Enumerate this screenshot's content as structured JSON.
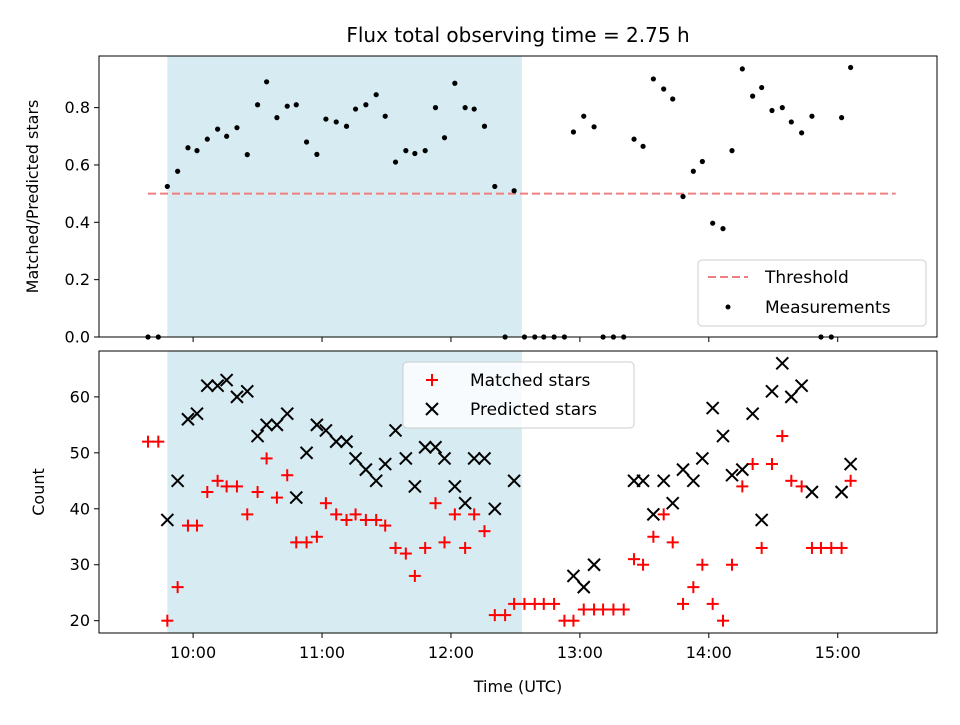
{
  "chart_data": {
    "title": "Flux total observing time = 2.75 h",
    "xlabel": "Time (UTC)",
    "x_unit": "decimal hours UTC",
    "xlim": [
      9.27,
      15.77
    ],
    "x_ticks": [
      {
        "value": 10,
        "label": "10:00"
      },
      {
        "value": 11,
        "label": "11:00"
      },
      {
        "value": 12,
        "label": "12:00"
      },
      {
        "value": 13,
        "label": "13:00"
      },
      {
        "value": 14,
        "label": "14:00"
      },
      {
        "value": 15,
        "label": "15:00"
      }
    ],
    "shaded_span": {
      "x0": 9.8,
      "x1": 12.55,
      "color": "#add8e6"
    },
    "top": {
      "type": "scatter",
      "ylabel": "Matched/Predicted stars",
      "ylim": [
        0,
        0.98
      ],
      "y_ticks": [
        "0.0",
        "0.2",
        "0.4",
        "0.6",
        "0.8"
      ],
      "y_tick_values": [
        0,
        0.2,
        0.4,
        0.6,
        0.8
      ],
      "legend_position": "lower-right",
      "threshold": {
        "name": "Threshold",
        "y": 0.5,
        "x0": 9.65,
        "x1": 15.45,
        "color": "#f08080"
      },
      "measurements": {
        "name": "Measurements",
        "color": "#000000",
        "points": [
          [
            9.65,
            0.0
          ],
          [
            9.73,
            0.0
          ],
          [
            9.8,
            0.525
          ],
          [
            9.88,
            0.578
          ],
          [
            9.96,
            0.66
          ],
          [
            10.03,
            0.65
          ],
          [
            10.11,
            0.69
          ],
          [
            10.19,
            0.725
          ],
          [
            10.26,
            0.7
          ],
          [
            10.34,
            0.73
          ],
          [
            10.42,
            0.636
          ],
          [
            10.5,
            0.81
          ],
          [
            10.57,
            0.89
          ],
          [
            10.65,
            0.765
          ],
          [
            10.73,
            0.805
          ],
          [
            10.8,
            0.81
          ],
          [
            10.88,
            0.68
          ],
          [
            10.96,
            0.637
          ],
          [
            11.03,
            0.76
          ],
          [
            11.11,
            0.75
          ],
          [
            11.19,
            0.735
          ],
          [
            11.26,
            0.795
          ],
          [
            11.34,
            0.81
          ],
          [
            11.42,
            0.845
          ],
          [
            11.49,
            0.77
          ],
          [
            11.57,
            0.61
          ],
          [
            11.65,
            0.65
          ],
          [
            11.72,
            0.64
          ],
          [
            11.8,
            0.65
          ],
          [
            11.88,
            0.8
          ],
          [
            11.95,
            0.695
          ],
          [
            12.03,
            0.885
          ],
          [
            12.11,
            0.8
          ],
          [
            12.18,
            0.795
          ],
          [
            12.26,
            0.735
          ],
          [
            12.34,
            0.525
          ],
          [
            12.42,
            0.0
          ],
          [
            12.49,
            0.51
          ],
          [
            12.57,
            0.0
          ],
          [
            12.65,
            0.0
          ],
          [
            12.72,
            0.0
          ],
          [
            12.8,
            0.0
          ],
          [
            12.88,
            0.0
          ],
          [
            12.95,
            0.715
          ],
          [
            13.03,
            0.77
          ],
          [
            13.11,
            0.733
          ],
          [
            13.18,
            0.0
          ],
          [
            13.26,
            0.0
          ],
          [
            13.34,
            0.0
          ],
          [
            13.42,
            0.69
          ],
          [
            13.49,
            0.665
          ],
          [
            13.57,
            0.9
          ],
          [
            13.65,
            0.865
          ],
          [
            13.72,
            0.83
          ],
          [
            13.8,
            0.49
          ],
          [
            13.88,
            0.578
          ],
          [
            13.95,
            0.612
          ],
          [
            14.03,
            0.397
          ],
          [
            14.11,
            0.378
          ],
          [
            14.18,
            0.65
          ],
          [
            14.26,
            0.935
          ],
          [
            14.34,
            0.84
          ],
          [
            14.41,
            0.87
          ],
          [
            14.49,
            0.79
          ],
          [
            14.57,
            0.8
          ],
          [
            14.64,
            0.75
          ],
          [
            14.72,
            0.712
          ],
          [
            14.8,
            0.77
          ],
          [
            14.87,
            0.0
          ],
          [
            14.95,
            0.0
          ],
          [
            15.03,
            0.765
          ],
          [
            15.1,
            0.94
          ]
        ]
      }
    },
    "bottom": {
      "type": "scatter",
      "ylabel": "Count",
      "ylim": [
        17.8,
        68.2
      ],
      "y_ticks": [
        "20",
        "30",
        "40",
        "50",
        "60"
      ],
      "y_tick_values": [
        20,
        30,
        40,
        50,
        60
      ],
      "legend_position": "upper-center",
      "series": [
        {
          "name": "Matched stars",
          "marker": "plus",
          "color": "#ff0000",
          "points": [
            [
              9.65,
              52
            ],
            [
              9.73,
              52
            ],
            [
              9.8,
              20
            ],
            [
              9.88,
              26
            ],
            [
              9.96,
              37
            ],
            [
              10.03,
              37
            ],
            [
              10.11,
              43
            ],
            [
              10.19,
              45
            ],
            [
              10.26,
              44
            ],
            [
              10.34,
              44
            ],
            [
              10.42,
              39
            ],
            [
              10.5,
              43
            ],
            [
              10.57,
              49
            ],
            [
              10.65,
              42
            ],
            [
              10.73,
              46
            ],
            [
              10.8,
              34
            ],
            [
              10.88,
              34
            ],
            [
              10.96,
              35
            ],
            [
              11.03,
              41
            ],
            [
              11.11,
              39
            ],
            [
              11.19,
              38
            ],
            [
              11.26,
              39
            ],
            [
              11.34,
              38
            ],
            [
              11.42,
              38
            ],
            [
              11.49,
              37
            ],
            [
              11.57,
              33
            ],
            [
              11.65,
              32
            ],
            [
              11.72,
              28
            ],
            [
              11.8,
              33
            ],
            [
              11.88,
              41
            ],
            [
              11.95,
              34
            ],
            [
              12.03,
              39
            ],
            [
              12.11,
              33
            ],
            [
              12.18,
              39
            ],
            [
              12.26,
              36
            ],
            [
              12.34,
              21
            ],
            [
              12.42,
              21
            ],
            [
              12.49,
              23
            ],
            [
              12.57,
              23
            ],
            [
              12.65,
              23
            ],
            [
              12.72,
              23
            ],
            [
              12.8,
              23
            ],
            [
              12.88,
              20
            ],
            [
              12.95,
              20
            ],
            [
              13.03,
              22
            ],
            [
              13.11,
              22
            ],
            [
              13.18,
              22
            ],
            [
              13.26,
              22
            ],
            [
              13.34,
              22
            ],
            [
              13.42,
              31
            ],
            [
              13.49,
              30
            ],
            [
              13.57,
              35
            ],
            [
              13.65,
              39
            ],
            [
              13.72,
              34
            ],
            [
              13.8,
              23
            ],
            [
              13.88,
              26
            ],
            [
              13.95,
              30
            ],
            [
              14.03,
              23
            ],
            [
              14.11,
              20
            ],
            [
              14.18,
              30
            ],
            [
              14.26,
              44
            ],
            [
              14.34,
              48
            ],
            [
              14.41,
              33
            ],
            [
              14.49,
              48
            ],
            [
              14.57,
              53
            ],
            [
              14.64,
              45
            ],
            [
              14.72,
              44
            ],
            [
              14.8,
              33
            ],
            [
              14.87,
              33
            ],
            [
              14.95,
              33
            ],
            [
              15.03,
              33
            ],
            [
              15.1,
              45
            ]
          ]
        },
        {
          "name": "Predicted stars",
          "marker": "x",
          "color": "#000000",
          "points": [
            [
              9.8,
              38
            ],
            [
              9.88,
              45
            ],
            [
              9.96,
              56
            ],
            [
              10.03,
              57
            ],
            [
              10.11,
              62
            ],
            [
              10.19,
              62
            ],
            [
              10.26,
              63
            ],
            [
              10.34,
              60
            ],
            [
              10.42,
              61
            ],
            [
              10.5,
              53
            ],
            [
              10.57,
              55
            ],
            [
              10.65,
              55
            ],
            [
              10.73,
              57
            ],
            [
              10.8,
              42
            ],
            [
              10.88,
              50
            ],
            [
              10.96,
              55
            ],
            [
              11.03,
              54
            ],
            [
              11.11,
              52
            ],
            [
              11.19,
              52
            ],
            [
              11.26,
              49
            ],
            [
              11.34,
              47
            ],
            [
              11.42,
              45
            ],
            [
              11.49,
              48
            ],
            [
              11.57,
              54
            ],
            [
              11.65,
              49
            ],
            [
              11.72,
              44
            ],
            [
              11.8,
              51
            ],
            [
              11.88,
              51
            ],
            [
              11.95,
              49
            ],
            [
              12.03,
              44
            ],
            [
              12.11,
              41
            ],
            [
              12.18,
              49
            ],
            [
              12.26,
              49
            ],
            [
              12.34,
              40
            ],
            [
              12.49,
              45
            ],
            [
              12.95,
              28
            ],
            [
              13.03,
              26
            ],
            [
              13.11,
              30
            ],
            [
              13.42,
              45
            ],
            [
              13.49,
              45
            ],
            [
              13.57,
              39
            ],
            [
              13.65,
              45
            ],
            [
              13.72,
              41
            ],
            [
              13.8,
              47
            ],
            [
              13.88,
              45
            ],
            [
              13.95,
              49
            ],
            [
              14.03,
              58
            ],
            [
              14.11,
              53
            ],
            [
              14.18,
              46
            ],
            [
              14.26,
              47
            ],
            [
              14.34,
              57
            ],
            [
              14.41,
              38
            ],
            [
              14.49,
              61
            ],
            [
              14.57,
              66
            ],
            [
              14.64,
              60
            ],
            [
              14.72,
              62
            ],
            [
              14.8,
              43
            ],
            [
              15.03,
              43
            ],
            [
              15.1,
              48
            ]
          ]
        }
      ]
    }
  }
}
